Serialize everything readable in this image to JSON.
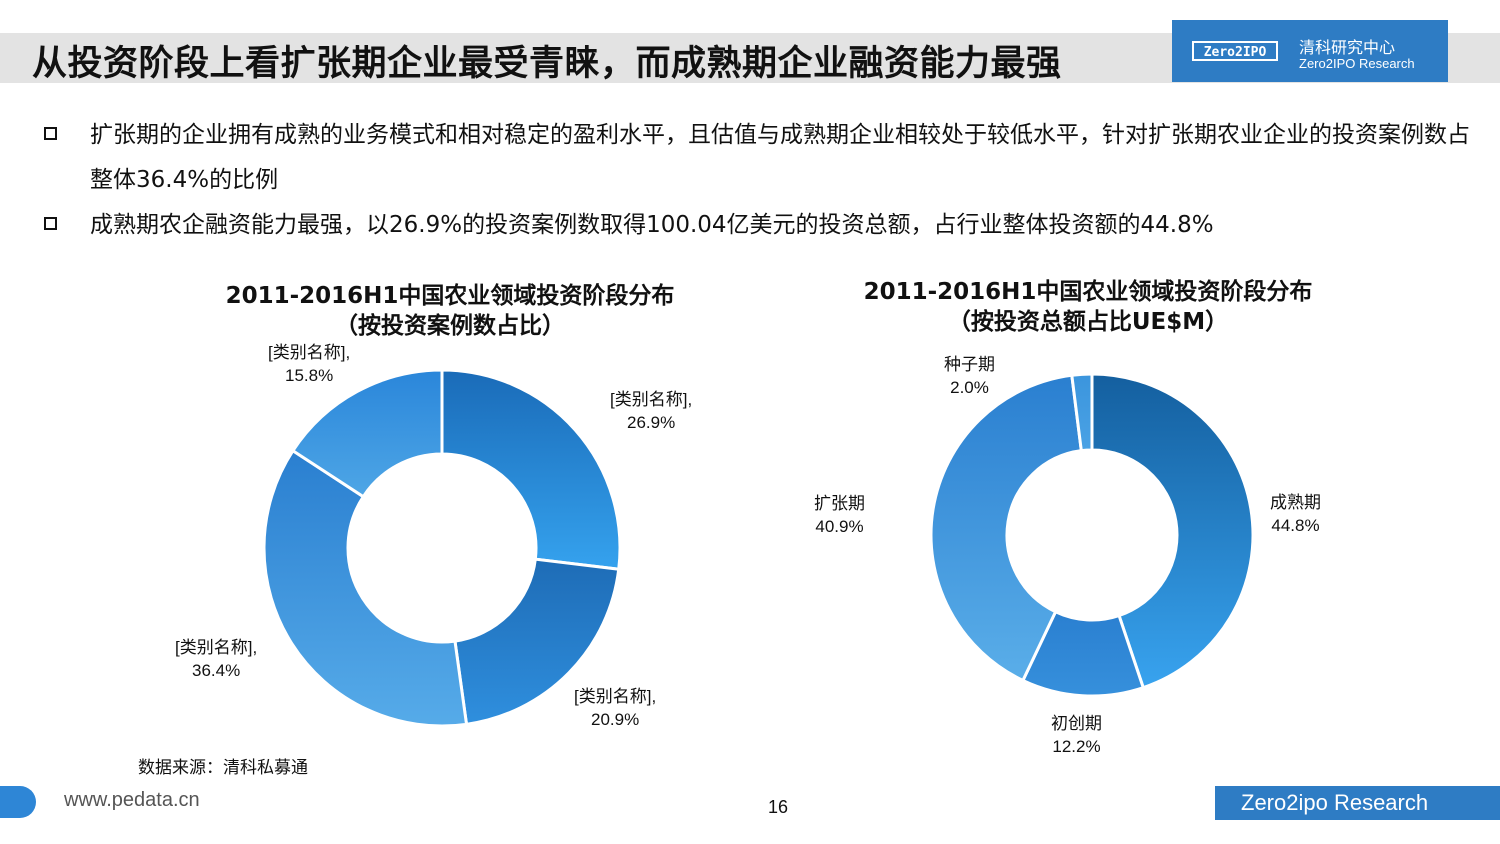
{
  "header": {
    "title": "从投资阶段上看扩张期企业最受青睐，而成熟期企业融资能力最强",
    "logo_mark": "Zero2IPO",
    "logo_cn": "清科研究中心",
    "logo_en": "Zero2IPO Research"
  },
  "bullets": [
    "扩张期的企业拥有成熟的业务模式和相对稳定的盈利水平，且估值与成熟期企业相较处于较低水平，针对扩张期农业企业的投资案例数占整体36.4%的比例",
    "成熟期农企融资能力最强，以26.9%的投资案例数取得100.04亿美元的投资总额，占行业整体投资额的44.8%"
  ],
  "chart_data": [
    {
      "type": "pie",
      "title": "2011-2016H1中国农业领域投资阶段分布",
      "subtitle": "（按投资案例数占比）",
      "slices": [
        {
          "label": "[类别名称],",
          "value": 26.9,
          "value_label": "26.9%",
          "color": "#2a8ad8"
        },
        {
          "label": "[类别名称],",
          "value": 20.9,
          "value_label": "20.9%",
          "color": "#2f7fc9"
        },
        {
          "label": "[类别名称],",
          "value": 36.4,
          "value_label": "36.4%",
          "color": "#3a8fd6"
        },
        {
          "label": "[类别名称],",
          "value": 15.8,
          "value_label": "15.8%",
          "color": "#3c95dc"
        }
      ]
    },
    {
      "type": "pie",
      "title": "2011-2016H1中国农业领域投资阶段分布",
      "subtitle": "（按投资总额占比UE$M）",
      "slices": [
        {
          "label": "成熟期",
          "value": 44.8,
          "value_label": "44.8%",
          "color": "#2a8ad8"
        },
        {
          "label": "初创期",
          "value": 12.2,
          "value_label": "12.2%",
          "color": "#2f7fc9"
        },
        {
          "label": "扩张期",
          "value": 40.9,
          "value_label": "40.9%",
          "color": "#3a8fd6"
        },
        {
          "label": "种子期",
          "value": 2.0,
          "value_label": "2.0%",
          "color": "#3c95dc"
        }
      ]
    }
  ],
  "footer": {
    "source": "数据来源：清科私募通",
    "url": "www.pedata.cn",
    "page": "16",
    "brand": "Zero2ipo Research"
  }
}
